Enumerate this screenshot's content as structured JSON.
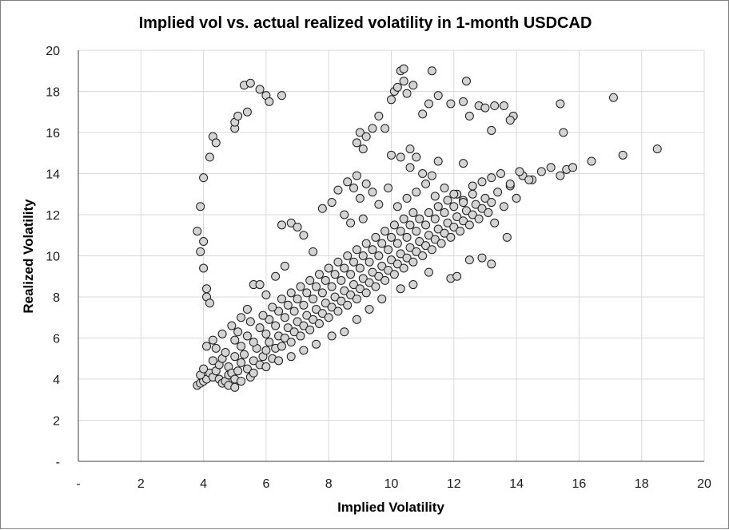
{
  "chart_data": {
    "type": "scatter",
    "title": "Implied vol vs. actual realized volatility in 1-month USDCAD",
    "xlabel": "Implied Volatility",
    "ylabel": "Realized Volatility",
    "xlim": [
      0,
      20
    ],
    "ylim": [
      0,
      20
    ],
    "x_ticks": [
      "-",
      "2",
      "4",
      "6",
      "8",
      "10",
      "12",
      "14",
      "16",
      "18",
      "20"
    ],
    "y_ticks": [
      "-",
      "2",
      "4",
      "6",
      "8",
      "10",
      "12",
      "14",
      "16",
      "18",
      "20"
    ],
    "grid": true,
    "legend": "none",
    "marker_fill": "#d4d4d4",
    "marker_edge": "#1a1a1a",
    "series": [
      {
        "points": [
          [
            3.8,
            3.7
          ],
          [
            3.9,
            3.8
          ],
          [
            4.0,
            3.9
          ],
          [
            4.1,
            4.0
          ],
          [
            3.9,
            4.2
          ],
          [
            4.2,
            4.3
          ],
          [
            4.3,
            4.1
          ],
          [
            4.0,
            4.5
          ],
          [
            4.4,
            4.4
          ],
          [
            4.5,
            4.0
          ],
          [
            4.6,
            3.8
          ],
          [
            4.7,
            3.9
          ],
          [
            4.8,
            4.2
          ],
          [
            4.5,
            4.7
          ],
          [
            4.3,
            4.9
          ],
          [
            4.6,
            5.0
          ],
          [
            4.8,
            4.6
          ],
          [
            4.9,
            4.3
          ],
          [
            5.0,
            4.0
          ],
          [
            5.1,
            4.4
          ],
          [
            5.2,
            4.8
          ],
          [
            5.0,
            5.1
          ],
          [
            4.7,
            5.3
          ],
          [
            4.4,
            5.5
          ],
          [
            5.3,
            5.2
          ],
          [
            5.4,
            4.5
          ],
          [
            5.5,
            4.1
          ],
          [
            5.6,
            4.9
          ],
          [
            5.2,
            5.6
          ],
          [
            5.0,
            5.9
          ],
          [
            5.7,
            5.5
          ],
          [
            5.8,
            4.7
          ],
          [
            5.9,
            5.1
          ],
          [
            6.0,
            5.4
          ],
          [
            5.6,
            5.8
          ],
          [
            5.4,
            6.1
          ],
          [
            5.1,
            6.3
          ],
          [
            6.1,
            5.8
          ],
          [
            6.2,
            5.0
          ],
          [
            6.3,
            5.5
          ],
          [
            6.0,
            6.2
          ],
          [
            5.8,
            6.5
          ],
          [
            5.5,
            6.8
          ],
          [
            6.4,
            6.1
          ],
          [
            6.5,
            5.6
          ],
          [
            6.6,
            6.0
          ],
          [
            6.3,
            6.6
          ],
          [
            6.1,
            6.9
          ],
          [
            5.9,
            7.1
          ],
          [
            6.7,
            6.5
          ],
          [
            6.8,
            5.8
          ],
          [
            6.9,
            6.3
          ],
          [
            6.6,
            7.0
          ],
          [
            6.4,
            7.3
          ],
          [
            6.2,
            7.5
          ],
          [
            7.0,
            6.8
          ],
          [
            7.1,
            6.1
          ],
          [
            7.2,
            6.6
          ],
          [
            6.9,
            7.3
          ],
          [
            6.7,
            7.6
          ],
          [
            6.5,
            7.9
          ],
          [
            7.3,
            7.1
          ],
          [
            7.4,
            6.4
          ],
          [
            7.5,
            6.9
          ],
          [
            7.2,
            7.6
          ],
          [
            7.0,
            7.9
          ],
          [
            6.8,
            8.2
          ],
          [
            7.6,
            7.4
          ],
          [
            7.7,
            6.7
          ],
          [
            7.8,
            7.2
          ],
          [
            7.5,
            7.9
          ],
          [
            7.3,
            8.2
          ],
          [
            7.1,
            8.5
          ],
          [
            7.9,
            7.7
          ],
          [
            8.0,
            7.0
          ],
          [
            8.1,
            7.5
          ],
          [
            7.8,
            8.2
          ],
          [
            7.6,
            8.5
          ],
          [
            7.4,
            8.8
          ],
          [
            8.2,
            8.0
          ],
          [
            8.3,
            7.3
          ],
          [
            8.4,
            7.8
          ],
          [
            8.1,
            8.5
          ],
          [
            7.9,
            8.8
          ],
          [
            7.7,
            9.1
          ],
          [
            8.5,
            8.3
          ],
          [
            8.6,
            7.6
          ],
          [
            8.7,
            8.1
          ],
          [
            8.4,
            8.8
          ],
          [
            8.2,
            9.1
          ],
          [
            8.0,
            9.4
          ],
          [
            8.8,
            8.6
          ],
          [
            8.9,
            7.9
          ],
          [
            9.0,
            8.4
          ],
          [
            8.7,
            9.1
          ],
          [
            8.5,
            9.4
          ],
          [
            8.3,
            9.7
          ],
          [
            9.1,
            8.9
          ],
          [
            9.2,
            8.2
          ],
          [
            9.3,
            8.7
          ],
          [
            9.0,
            9.4
          ],
          [
            8.8,
            9.7
          ],
          [
            8.6,
            10.0
          ],
          [
            9.4,
            9.2
          ],
          [
            9.5,
            8.5
          ],
          [
            9.6,
            9.0
          ],
          [
            9.3,
            9.7
          ],
          [
            9.1,
            10.0
          ],
          [
            8.9,
            10.3
          ],
          [
            9.7,
            9.5
          ],
          [
            9.8,
            8.8
          ],
          [
            9.9,
            9.3
          ],
          [
            9.6,
            10.0
          ],
          [
            9.4,
            10.3
          ],
          [
            9.2,
            10.6
          ],
          [
            10.0,
            9.8
          ],
          [
            10.1,
            9.1
          ],
          [
            10.2,
            9.6
          ],
          [
            9.9,
            10.3
          ],
          [
            9.7,
            10.6
          ],
          [
            9.5,
            10.9
          ],
          [
            10.3,
            10.1
          ],
          [
            10.4,
            9.4
          ],
          [
            10.5,
            9.9
          ],
          [
            10.2,
            10.6
          ],
          [
            10.0,
            10.9
          ],
          [
            9.8,
            11.2
          ],
          [
            10.6,
            10.4
          ],
          [
            10.7,
            9.7
          ],
          [
            10.8,
            10.2
          ],
          [
            10.5,
            10.9
          ],
          [
            10.3,
            11.2
          ],
          [
            10.1,
            11.5
          ],
          [
            10.9,
            10.7
          ],
          [
            11.0,
            10.0
          ],
          [
            11.1,
            10.5
          ],
          [
            10.8,
            11.2
          ],
          [
            10.6,
            11.5
          ],
          [
            10.4,
            11.8
          ],
          [
            11.2,
            11.0
          ],
          [
            11.3,
            10.3
          ],
          [
            11.4,
            10.8
          ],
          [
            11.1,
            11.5
          ],
          [
            10.9,
            11.8
          ],
          [
            10.7,
            12.1
          ],
          [
            11.5,
            11.3
          ],
          [
            11.6,
            10.6
          ],
          [
            11.7,
            11.1
          ],
          [
            11.4,
            11.8
          ],
          [
            11.2,
            12.1
          ],
          [
            11.8,
            11.6
          ],
          [
            11.9,
            10.9
          ],
          [
            12.0,
            11.4
          ],
          [
            11.7,
            12.1
          ],
          [
            11.5,
            12.4
          ],
          [
            12.1,
            11.9
          ],
          [
            12.2,
            11.2
          ],
          [
            12.3,
            11.7
          ],
          [
            12.0,
            12.4
          ],
          [
            11.8,
            12.7
          ],
          [
            12.4,
            12.2
          ],
          [
            12.5,
            11.5
          ],
          [
            12.6,
            12.0
          ],
          [
            12.3,
            12.7
          ],
          [
            12.1,
            13.0
          ],
          [
            12.7,
            12.5
          ],
          [
            12.8,
            11.8
          ],
          [
            12.9,
            12.3
          ],
          [
            12.6,
            13.0
          ],
          [
            13.0,
            12.8
          ],
          [
            13.1,
            12.1
          ],
          [
            13.2,
            12.6
          ],
          [
            13.4,
            13.1
          ],
          [
            13.6,
            12.4
          ],
          [
            13.8,
            13.4
          ],
          [
            14.0,
            12.8
          ],
          [
            14.2,
            13.9
          ],
          [
            14.5,
            13.7
          ],
          [
            14.8,
            14.1
          ],
          [
            15.1,
            14.3
          ],
          [
            15.4,
            13.9
          ],
          [
            15.6,
            14.2
          ],
          [
            15.8,
            14.3
          ],
          [
            16.4,
            14.6
          ],
          [
            17.4,
            14.9
          ],
          [
            18.5,
            15.2
          ],
          [
            4.1,
            5.6
          ],
          [
            4.3,
            5.9
          ],
          [
            4.6,
            6.2
          ],
          [
            4.9,
            6.6
          ],
          [
            5.2,
            7.0
          ],
          [
            5.4,
            7.4
          ],
          [
            5.6,
            8.6
          ],
          [
            5.8,
            8.6
          ],
          [
            6.0,
            8.1
          ],
          [
            6.3,
            9.0
          ],
          [
            6.6,
            9.5
          ],
          [
            6.5,
            11.5
          ],
          [
            6.8,
            11.6
          ],
          [
            7.0,
            11.4
          ],
          [
            7.2,
            11.0
          ],
          [
            7.5,
            10.2
          ],
          [
            7.8,
            12.3
          ],
          [
            8.1,
            12.6
          ],
          [
            8.3,
            13.2
          ],
          [
            8.6,
            13.6
          ],
          [
            8.9,
            13.9
          ],
          [
            9.2,
            13.5
          ],
          [
            9.4,
            13.1
          ],
          [
            9.0,
            12.8
          ],
          [
            8.8,
            13.3
          ],
          [
            8.5,
            12.0
          ],
          [
            8.7,
            11.6
          ],
          [
            9.1,
            11.8
          ],
          [
            9.6,
            12.5
          ],
          [
            9.9,
            13.3
          ],
          [
            10.2,
            12.4
          ],
          [
            10.5,
            12.8
          ],
          [
            10.8,
            13.1
          ],
          [
            11.1,
            13.5
          ],
          [
            11.4,
            12.9
          ],
          [
            11.7,
            13.3
          ],
          [
            12.0,
            13.0
          ],
          [
            12.3,
            12.6
          ],
          [
            12.6,
            13.4
          ],
          [
            12.9,
            13.6
          ],
          [
            13.2,
            13.8
          ],
          [
            13.5,
            14.0
          ],
          [
            13.8,
            13.5
          ],
          [
            14.1,
            14.1
          ],
          [
            14.4,
            13.7
          ],
          [
            13.3,
            11.6
          ],
          [
            13.7,
            10.9
          ],
          [
            12.5,
            9.8
          ],
          [
            12.9,
            9.9
          ],
          [
            13.2,
            9.6
          ],
          [
            11.9,
            8.9
          ],
          [
            12.1,
            9.0
          ],
          [
            11.2,
            9.2
          ],
          [
            10.7,
            8.6
          ],
          [
            10.3,
            8.4
          ],
          [
            9.7,
            7.9
          ],
          [
            9.3,
            7.4
          ],
          [
            8.9,
            6.9
          ],
          [
            8.5,
            6.3
          ],
          [
            8.1,
            6.1
          ],
          [
            7.6,
            5.7
          ],
          [
            7.2,
            5.4
          ],
          [
            6.8,
            5.1
          ],
          [
            6.4,
            4.9
          ],
          [
            6.0,
            4.6
          ],
          [
            5.6,
            4.3
          ],
          [
            5.2,
            3.9
          ],
          [
            4.8,
            3.7
          ],
          [
            5.0,
            3.6
          ],
          [
            9.0,
            16.0
          ],
          [
            9.2,
            15.8
          ],
          [
            8.9,
            15.5
          ],
          [
            9.1,
            15.2
          ],
          [
            9.4,
            16.2
          ],
          [
            9.6,
            16.8
          ],
          [
            9.8,
            16.2
          ],
          [
            10.0,
            17.6
          ],
          [
            10.1,
            18.0
          ],
          [
            10.2,
            18.2
          ],
          [
            10.4,
            18.5
          ],
          [
            10.5,
            17.9
          ],
          [
            10.7,
            18.3
          ],
          [
            10.3,
            19.0
          ],
          [
            10.4,
            19.1
          ],
          [
            10.6,
            15.2
          ],
          [
            10.8,
            14.8
          ],
          [
            10.0,
            14.9
          ],
          [
            10.3,
            14.8
          ],
          [
            11.0,
            16.9
          ],
          [
            11.2,
            17.4
          ],
          [
            11.5,
            17.8
          ],
          [
            11.9,
            17.4
          ],
          [
            11.3,
            19.0
          ],
          [
            12.3,
            17.5
          ],
          [
            12.4,
            18.5
          ],
          [
            12.5,
            16.8
          ],
          [
            12.8,
            17.3
          ],
          [
            13.0,
            17.2
          ],
          [
            13.3,
            17.3
          ],
          [
            13.6,
            17.3
          ],
          [
            13.9,
            16.8
          ],
          [
            13.8,
            16.6
          ],
          [
            13.2,
            16.1
          ],
          [
            15.4,
            17.4
          ],
          [
            15.5,
            16.0
          ],
          [
            17.1,
            17.7
          ],
          [
            11.3,
            13.9
          ],
          [
            11.5,
            14.6
          ],
          [
            12.3,
            14.5
          ],
          [
            10.6,
            14.3
          ],
          [
            11.0,
            14.0
          ],
          [
            3.8,
            11.2
          ],
          [
            3.9,
            12.4
          ],
          [
            4.0,
            13.8
          ],
          [
            4.2,
            14.8
          ],
          [
            4.3,
            15.8
          ],
          [
            4.4,
            15.5
          ],
          [
            3.9,
            10.2
          ],
          [
            4.0,
            10.7
          ],
          [
            4.0,
            9.4
          ],
          [
            4.1,
            8.4
          ],
          [
            4.1,
            8.0
          ],
          [
            4.2,
            7.7
          ],
          [
            5.0,
            16.2
          ],
          [
            5.0,
            16.5
          ],
          [
            5.1,
            16.8
          ],
          [
            5.4,
            17.0
          ],
          [
            5.3,
            18.3
          ],
          [
            5.5,
            18.4
          ],
          [
            5.8,
            18.1
          ],
          [
            6.0,
            17.8
          ],
          [
            6.1,
            17.5
          ],
          [
            6.5,
            17.8
          ]
        ]
      }
    ]
  }
}
